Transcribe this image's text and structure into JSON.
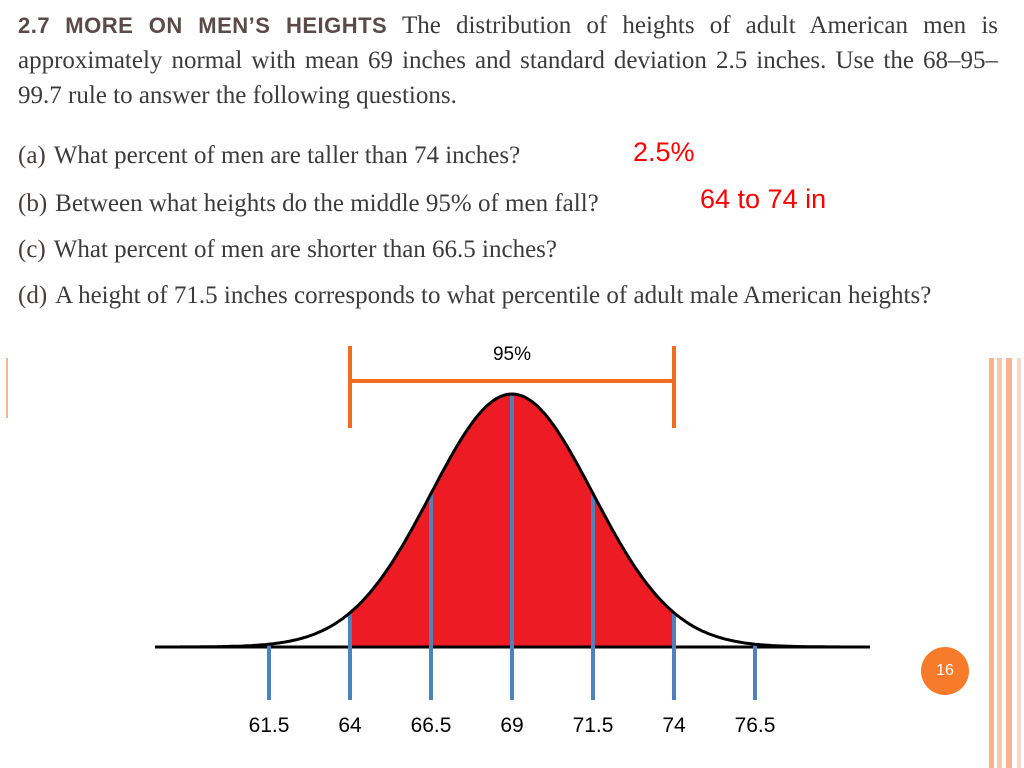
{
  "problem": {
    "number": "2.7",
    "heading": "MORE ON MEN’S HEIGHTS",
    "intro_text": "The distribution of heights of adult American men is approximately normal with mean 69 inches and standard deviation 2.5 inches. Use the 68–95–99.7 rule to answer the following questions.",
    "questions": [
      {
        "label": "(a)",
        "text": "What percent of men are taller than 74 inches?"
      },
      {
        "label": "(b)",
        "text": "Between what heights do the middle 95% of men fall?"
      },
      {
        "label": "(c)",
        "text": "What percent of men are shorter than 66.5 inches?"
      },
      {
        "label": "(d)",
        "text": "A height of 71.5 inches corresponds to what percentile of adult male American heights?"
      }
    ]
  },
  "answers": {
    "a": "2.5%",
    "b": "64 to 74 in"
  },
  "diagram": {
    "mean": 69,
    "sd": 2.5,
    "shaded_range": [
      64,
      74
    ],
    "bracket_label": "95%",
    "tick_values": [
      61.5,
      64,
      66.5,
      69,
      71.5,
      74,
      76.5
    ],
    "tick_labels": [
      "61.5",
      "64",
      "66.5",
      "69",
      "71.5",
      "74",
      "76.5"
    ],
    "colors": {
      "shade": "#ed1c24",
      "tick": "#4f81bd",
      "bracket": "#f26d21",
      "curve": "#000000",
      "answer_text": "#ff0000"
    }
  },
  "slide": {
    "page_number": "16",
    "accent_color": "#f77b2a"
  }
}
